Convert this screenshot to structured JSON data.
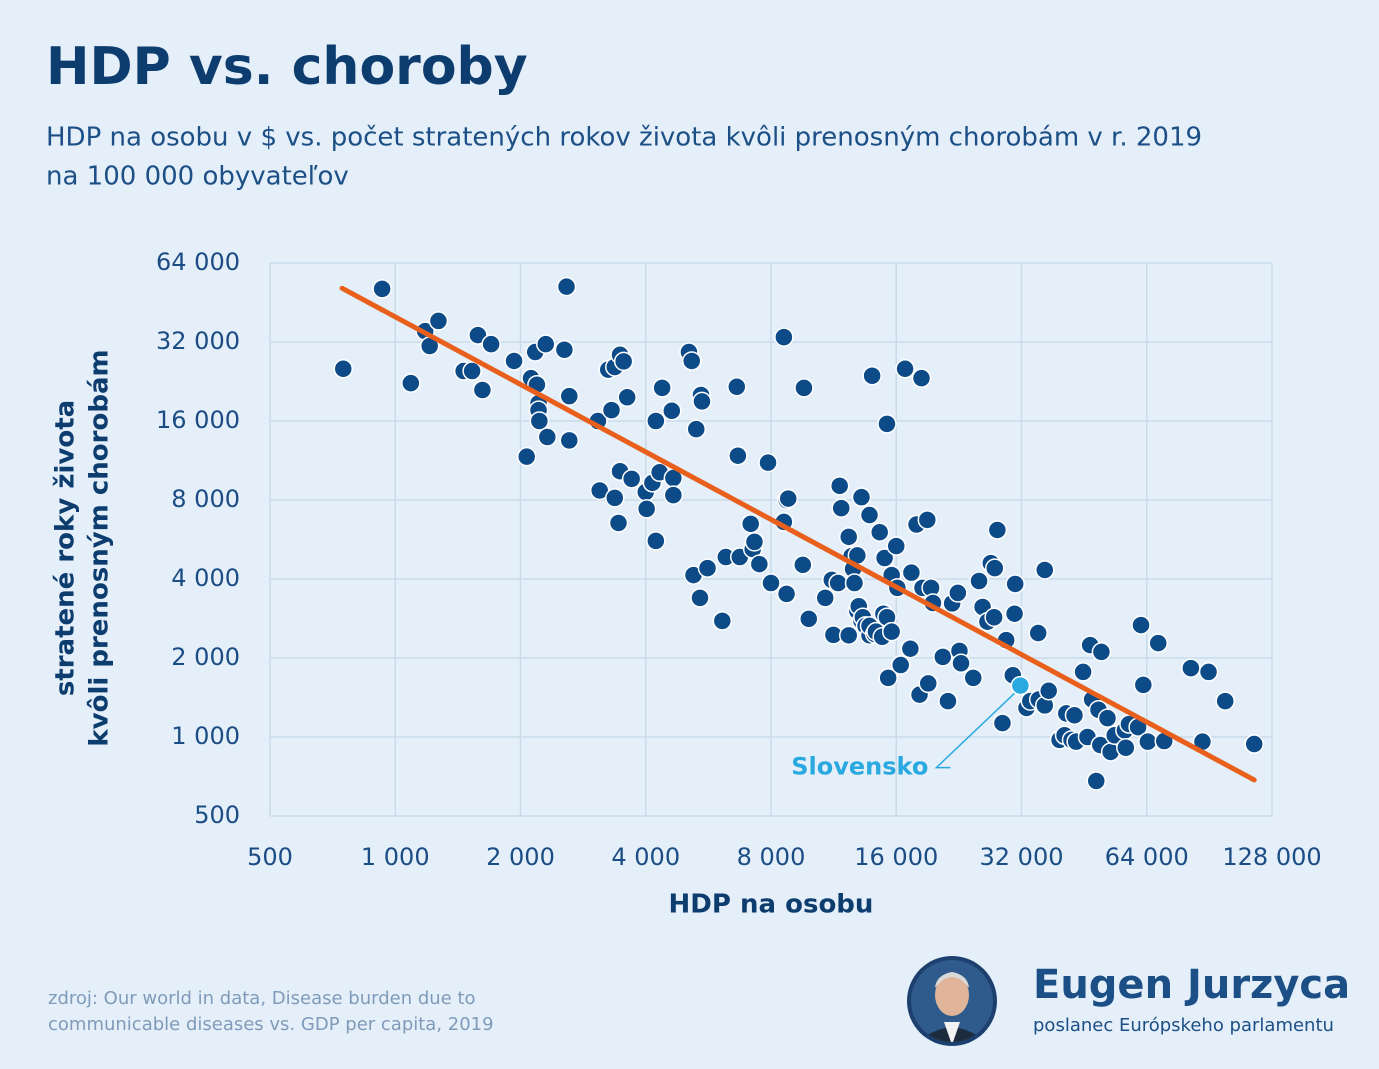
{
  "chart_data": {
    "type": "scatter",
    "title": "HDP vs. choroby",
    "subtitle": [
      "HDP na osobu v $ vs. počet stratených rokov života kvôli prenosným chorobám v r. 2019",
      "na 100 000 obyvateľov"
    ],
    "x_label": "HDP na osobu",
    "y_label": [
      "stratené roky života",
      "kvôli prenosným chorobám"
    ],
    "xscale": "log",
    "yscale": "log",
    "xlim": [
      500,
      128000
    ],
    "ylim": [
      500,
      64000
    ],
    "xticks": [
      500,
      {
        "value": 1000,
        "label": "1 000"
      },
      {
        "value": 2000,
        "label": "2 000"
      },
      {
        "value": 4000,
        "label": "4 000"
      },
      {
        "value": 8000,
        "label": "8 000"
      },
      {
        "value": 16000,
        "label": "16 000"
      },
      {
        "value": 32000,
        "label": "32 000"
      },
      {
        "value": 64000,
        "label": "64 000"
      },
      {
        "value": 128000,
        "label": "128 000"
      }
    ],
    "yticks": [
      500,
      {
        "value": 1000,
        "label": "1 000"
      },
      {
        "value": 2000,
        "label": "2 000"
      },
      {
        "value": 4000,
        "label": "4 000"
      },
      {
        "value": 8000,
        "label": "8 000"
      },
      {
        "value": 16000,
        "label": "16 000"
      },
      {
        "value": 32000,
        "label": "32 000"
      },
      {
        "value": 64000,
        "label": "64 000"
      }
    ],
    "grid": true,
    "color": "#0d4a88",
    "x": [
      750,
      930,
      1090,
      1180,
      1270,
      1210,
      1460,
      1530,
      1580,
      1620,
      1700,
      1930,
      2070,
      2120,
      2170,
      2190,
      2210,
      2210,
      2220,
      2300,
      2320,
      2550,
      2580,
      2620,
      2620,
      3070,
      3100,
      3250,
      3310,
      3370,
      3370,
      3440,
      3470,
      3470,
      3540,
      3610,
      3700,
      4000,
      4020,
      4150,
      4230,
      4230,
      4320,
      4380,
      4620,
      4660,
      4660,
      5080,
      5160,
      5210,
      5290,
      5400,
      5430,
      5460,
      5630,
      6110,
      6230,
      6620,
      6660,
      6730,
      7150,
      7230,
      7300,
      7500,
      7870,
      8000,
      8590,
      8590,
      8720,
      8720,
      8800,
      9540,
      9600,
      9860,
      10800,
      11200,
      11300,
      11600,
      11700,
      11800,
      12300,
      12300,
      12500,
      12600,
      12700,
      12900,
      12900,
      13000,
      13200,
      13200,
      13300,
      13500,
      13800,
      13800,
      13800,
      14000,
      14200,
      14300,
      14600,
      14800,
      14900,
      15000,
      15200,
      15200,
      15300,
      15600,
      15600,
      16000,
      16100,
      16400,
      16800,
      17300,
      17400,
      17900,
      18200,
      18400,
      18500,
      19000,
      19100,
      19400,
      19600,
      20700,
      21300,
      21800,
      22500,
      22700,
      22900,
      24500,
      25300,
      25800,
      26500,
      27000,
      27500,
      27600,
      28000,
      28800,
      29400,
      30500,
      30800,
      30900,
      32900,
      33600,
      35100,
      35200,
      36400,
      36400,
      37200,
      39500,
      40600,
      41000,
      42200,
      42900,
      43300,
      45000,
      46100,
      46800,
      47300,
      48400,
      49000,
      49500,
      49800,
      51500,
      52400,
      53600,
      56700,
      57000,
      58000,
      61000,
      62000,
      62800,
      64400,
      68200,
      70500,
      81700,
      87100,
      90100,
      98800,
      116000
    ],
    "y": [
      25300,
      51000,
      22300,
      35200,
      38500,
      30900,
      24800,
      24800,
      34000,
      21000,
      31400,
      27100,
      11700,
      23300,
      29300,
      22000,
      18700,
      17600,
      16000,
      31400,
      13900,
      29900,
      52000,
      19900,
      13500,
      16000,
      8700,
      25100,
      17600,
      25700,
      8150,
      6540,
      10300,
      28600,
      27000,
      19700,
      9630,
      8580,
      7400,
      9300,
      5590,
      16000,
      10200,
      21400,
      17500,
      9700,
      8350,
      29300,
      27100,
      4140,
      14900,
      3390,
      20100,
      19000,
      4400,
      2770,
      4850,
      21600,
      11800,
      4850,
      6490,
      5200,
      5540,
      4560,
      11100,
      3860,
      33400,
      6600,
      3510,
      8000,
      8100,
      4530,
      21400,
      2820,
      3390,
      3970,
      2450,
      3860,
      9060,
      7450,
      5790,
      2440,
      4890,
      4370,
      3860,
      3020,
      4920,
      3150,
      8200,
      2770,
      2860,
      2650,
      2440,
      2650,
      7010,
      23800,
      2470,
      2520,
      6030,
      2410,
      2950,
      4810,
      2860,
      15600,
      1680,
      4140,
      2520,
      5340,
      3700,
      1880,
      25300,
      2170,
      4230,
      6450,
      1450,
      23300,
      3700,
      6720,
      1600,
      3700,
      3240,
      2020,
      1370,
      3230,
      3540,
      2130,
      1910,
      1680,
      3930,
      3130,
      2750,
      4600,
      2860,
      4400,
      6150,
      1130,
      2340,
      1720,
      2950,
      3830,
      1290,
      1370,
      2490,
      1390,
      4330,
      1320,
      1500,
      975,
      1015,
      1230,
      975,
      1210,
      960,
      1770,
      1000,
      2240,
      1390,
      680,
      1270,
      932,
      2110,
      1180,
      877,
      1015,
      1060,
      910,
      1120,
      1090,
      2670,
      1580,
      960,
      2280,
      965,
      1830,
      960,
      1770,
      1370,
      940
    ],
    "highlight": {
      "text": "Slovensko",
      "x": 31800,
      "y": 1570,
      "color": "#2aa9e0"
    },
    "trendline": {
      "x": [
        745,
        116000
      ],
      "y": [
        51300,
        686
      ],
      "color": "#e8601c"
    },
    "source": [
      "zdroj: Our world in data, Disease burden due to",
      "communicable diseases vs. GDP per capita, 2019"
    ],
    "author": {
      "name": "Eugen Jurzyca",
      "role": "poslanec Európskeho parlamentu"
    }
  }
}
